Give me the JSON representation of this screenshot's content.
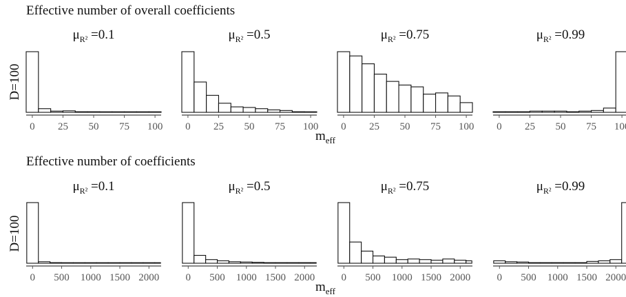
{
  "rows": [
    {
      "section_title": "Effective number of overall coefficients",
      "row_label": "D=100",
      "xlabel_main": "m",
      "xlabel_sub": "eff"
    },
    {
      "section_title": "Effective number of coefficients",
      "row_label": "D=100",
      "xlabel_main": "m",
      "xlabel_sub": "eff"
    }
  ],
  "chart_data": [
    {
      "type": "bar",
      "subtype": "histogram",
      "title": "Effective number of overall coefficients",
      "ylabel": "D=100",
      "xlabel": "meff",
      "xlim": [
        -5,
        105
      ],
      "xticks": [
        "0",
        "25",
        "50",
        "75",
        "100"
      ],
      "bin_edges": [
        -5,
        5,
        15,
        25,
        35,
        45,
        55,
        65,
        75,
        85,
        95,
        105
      ],
      "panels": [
        {
          "title_prefix": "μ",
          "title_sub": "R²",
          "title_suffix": " =0.1",
          "values": [
            1.0,
            0.06,
            0.02,
            0.025,
            0.01,
            0.01,
            0.005,
            0.005,
            0.004,
            0.004,
            0.004
          ]
        },
        {
          "title_prefix": "μ",
          "title_sub": "R²",
          "title_suffix": " =0.5",
          "values": [
            1.0,
            0.5,
            0.28,
            0.15,
            0.09,
            0.08,
            0.06,
            0.04,
            0.03,
            0.01,
            0.005
          ]
        },
        {
          "title_prefix": "μ",
          "title_sub": "R²",
          "title_suffix": " =0.75",
          "values": [
            1.0,
            0.93,
            0.8,
            0.63,
            0.51,
            0.45,
            0.42,
            0.3,
            0.32,
            0.27,
            0.16
          ]
        },
        {
          "title_prefix": "μ",
          "title_sub": "R²",
          "title_suffix": " =0.99",
          "values": [
            0.01,
            0.01,
            0.01,
            0.02,
            0.02,
            0.02,
            0.01,
            0.02,
            0.03,
            0.07,
            1.0
          ]
        }
      ]
    },
    {
      "type": "bar",
      "subtype": "histogram",
      "title": "Effective number of coefficients",
      "ylabel": "D=100",
      "xlabel": "meff",
      "xlim": [
        -110,
        2210
      ],
      "xticks": [
        "0",
        "500",
        "1000",
        "1500",
        "2000"
      ],
      "bin_edges": [
        -100,
        100,
        300,
        500,
        700,
        900,
        1100,
        1300,
        1500,
        1700,
        1900,
        2100,
        2200
      ],
      "panels": [
        {
          "title_prefix": "μ",
          "title_sub": "R²",
          "title_suffix": " =0.1",
          "values": [
            1.0,
            0.025,
            0.01,
            0.005,
            0.004,
            0.003,
            0.003,
            0.003,
            0.003,
            0.002,
            0.002,
            0.002
          ]
        },
        {
          "title_prefix": "μ",
          "title_sub": "R²",
          "title_suffix": " =0.5",
          "values": [
            1.0,
            0.13,
            0.06,
            0.04,
            0.025,
            0.02,
            0.015,
            0.01,
            0.01,
            0.01,
            0.01,
            0.01
          ]
        },
        {
          "title_prefix": "μ",
          "title_sub": "R²",
          "title_suffix": " =0.75",
          "values": [
            1.0,
            0.35,
            0.2,
            0.12,
            0.1,
            0.06,
            0.07,
            0.06,
            0.05,
            0.07,
            0.05,
            0.04
          ]
        },
        {
          "title_prefix": "μ",
          "title_sub": "R²",
          "title_suffix": " =0.99",
          "values": [
            0.04,
            0.025,
            0.02,
            0.01,
            0.01,
            0.01,
            0.01,
            0.01,
            0.03,
            0.04,
            0.06,
            1.0
          ]
        }
      ]
    }
  ]
}
